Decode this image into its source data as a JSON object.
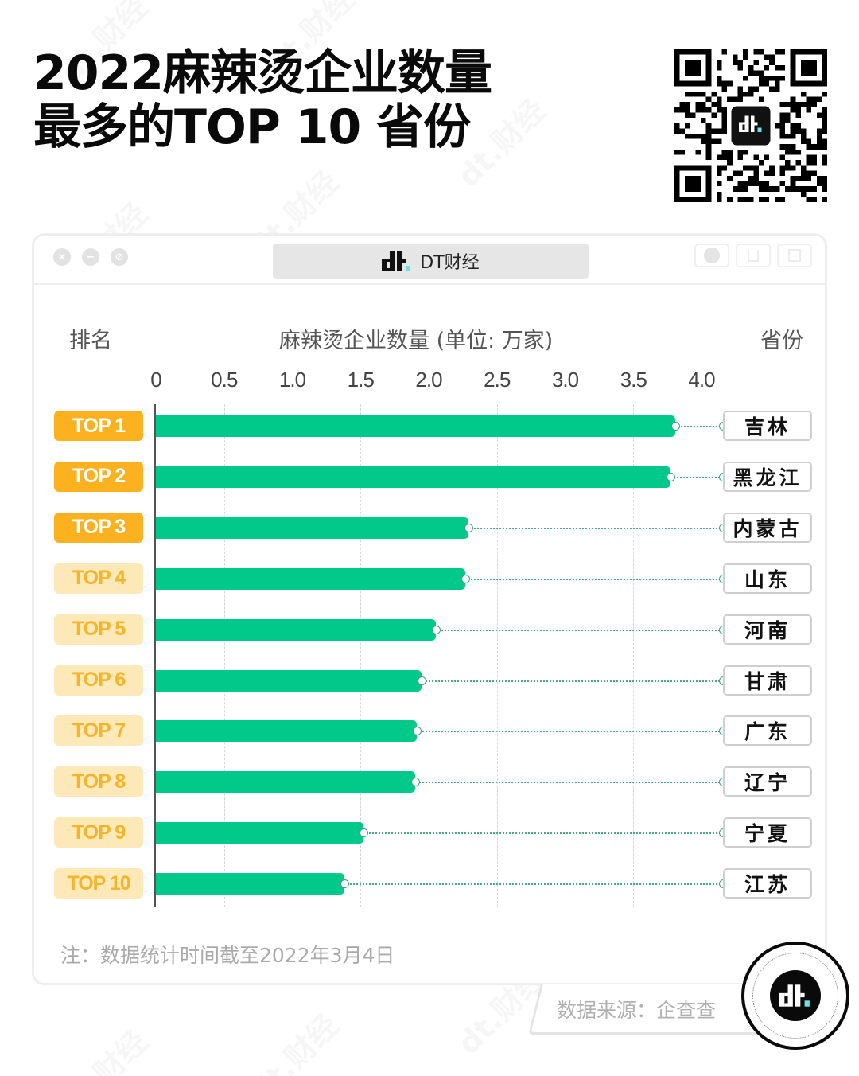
{
  "header": {
    "title_line1": "2022麻辣烫企业数量",
    "title_line2": "最多的TOP 10 省份"
  },
  "qr": {
    "icon": "qr-code-icon",
    "center_logo": "dt-logo-icon"
  },
  "window": {
    "traffic_icons": [
      "close-icon",
      "minimize-icon",
      "disabled-icon"
    ],
    "traffic_glyphs": [
      "×",
      "−",
      "⊘"
    ],
    "address_brand": "DT财经",
    "window_buttons": [
      "record-icon",
      "share-icon",
      "copy-icon"
    ]
  },
  "chart": {
    "rank_header": "排名",
    "value_header": "麻辣烫企业数量 (单位: 万家)",
    "province_header": "省份",
    "note": "注：数据统计时间截至2022年3月4日"
  },
  "footer": {
    "source": "数据来源：企查查",
    "stamp_icon": "dt-logo-icon"
  },
  "watermark": "dt.财经",
  "colors": {
    "bar": "#00c98a",
    "badge_top3_bg": "#fbb120",
    "badge_rest_bg": "#fde8b8",
    "badge_rest_text": "#f5b52a",
    "leader": "#4aaa88",
    "logo_accent": "#6fe0e6"
  },
  "chart_data": {
    "type": "bar",
    "orientation": "horizontal",
    "title": "2022麻辣烫企业数量最多的TOP 10 省份",
    "xlabel": "麻辣烫企业数量 (单位: 万家)",
    "ylabel": "排名",
    "right_label": "省份",
    "xlim": [
      0,
      4.0
    ],
    "xticks": [
      "0",
      "0.5",
      "1.0",
      "1.5",
      "2.0",
      "2.5",
      "3.0",
      "3.5",
      "4.0"
    ],
    "grid": true,
    "legend": null,
    "categories": [
      "TOP 1",
      "TOP 2",
      "TOP 3",
      "TOP 4",
      "TOP 5",
      "TOP 6",
      "TOP 7",
      "TOP 8",
      "TOP 9",
      "TOP 10"
    ],
    "provinces": [
      "吉林",
      "黑龙江",
      "内蒙古",
      "山东",
      "河南",
      "甘肃",
      "广东",
      "辽宁",
      "宁夏",
      "江苏"
    ],
    "values": [
      3.81,
      3.77,
      2.29,
      2.27,
      2.05,
      1.95,
      1.91,
      1.9,
      1.52,
      1.38
    ],
    "annotation": "注：数据统计时间截至2022年3月4日",
    "source": "数据来源：企查查"
  }
}
